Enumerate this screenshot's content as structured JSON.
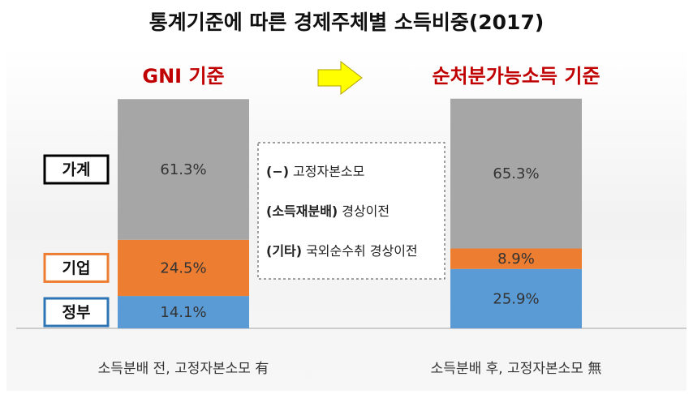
{
  "chart_data": {
    "type": "stacked_bar",
    "title": "통계기준에 따른 경제주체별 소득비중(2017)",
    "categories": [
      "GNI 기준",
      "순처분가능소득 기준"
    ],
    "category_notes": [
      "소득분배 전, 고정자본소모 有",
      "소득분배 후, 고정자본소모 無"
    ],
    "series": [
      {
        "name": "정부",
        "color": "#5b9bd5",
        "border_color": "#2e75b6",
        "values": [
          14.1,
          25.9
        ],
        "value_labels": [
          "14.1%",
          "25.9%"
        ]
      },
      {
        "name": "기업",
        "color": "#ed7d31",
        "border_color": "#ed7d31",
        "values": [
          24.5,
          8.9
        ],
        "value_labels": [
          "24.5%",
          "8.9%"
        ]
      },
      {
        "name": "가계",
        "color": "#a6a6a6",
        "border_color": "#000000",
        "values": [
          61.3,
          65.3
        ],
        "value_labels": [
          "61.3%",
          "65.3%"
        ]
      }
    ],
    "annotations": [
      {
        "bold": "(−)",
        "text": "고정자본소모"
      },
      {
        "bold": "(소득재분배)",
        "text": "경상이전"
      },
      {
        "bold": "(기타)",
        "text": "국외순수취 경상이전"
      }
    ],
    "ylim": [
      0,
      100
    ]
  }
}
